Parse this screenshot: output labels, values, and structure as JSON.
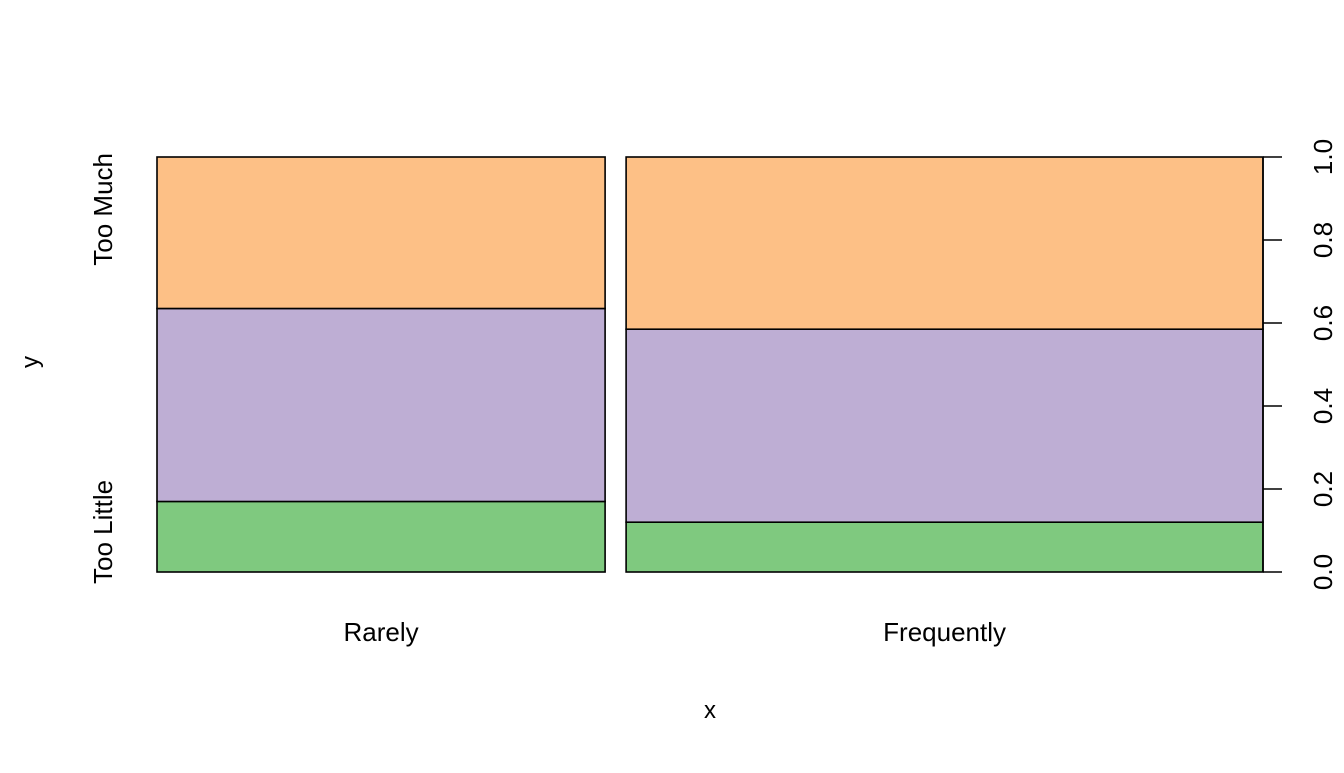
{
  "chart_data": {
    "type": "spineplot",
    "xlabel": "x",
    "ylabel": "y",
    "categories": [
      "Rarely",
      "Frequently"
    ],
    "category_widths": [
      0.413,
      0.587
    ],
    "levels": [
      "Too Little",
      "",
      "Too Much"
    ],
    "colors": [
      "#7fc97f",
      "#beaed4",
      "#fdc086"
    ],
    "stacks": [
      {
        "category": "Rarely",
        "proportions": [
          0.17,
          0.465,
          0.365
        ]
      },
      {
        "category": "Frequently",
        "proportions": [
          0.12,
          0.465,
          0.415
        ]
      }
    ],
    "right_axis": {
      "ylim": [
        0,
        1
      ],
      "ticks": [
        "0.0",
        "0.2",
        "0.4",
        "0.6",
        "0.8",
        "1.0"
      ]
    }
  }
}
